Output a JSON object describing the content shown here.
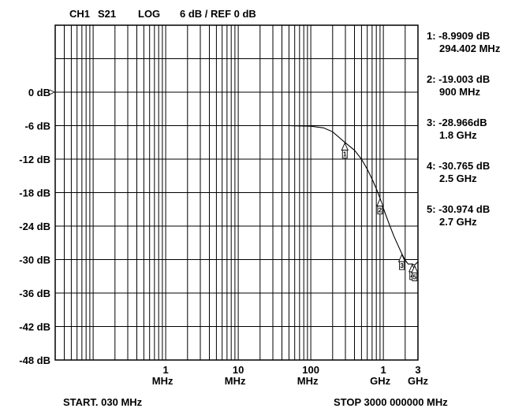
{
  "header": {
    "channel": "CH1",
    "parameter": "S21",
    "format": "LOG",
    "scale": "6 dB / REF 0 dB"
  },
  "footer": {
    "start": "START. 030 MHz",
    "stop": "STOP  3000 000000 MHz"
  },
  "markers": [
    {
      "num": 1,
      "value": "1: -8.9909 dB",
      "freq": "294.402 MHz"
    },
    {
      "num": 2,
      "value": "2: -19.003 dB",
      "freq": "900 MHz"
    },
    {
      "num": 3,
      "value": "3: -28.966dB",
      "freq": "1.8 GHz"
    },
    {
      "num": 4,
      "value": "4: -30.765 dB",
      "freq": "2.5 GHz"
    },
    {
      "num": 5,
      "value": "5: -30.974 dB",
      "freq": "2.7 GHz"
    }
  ],
  "chart_data": {
    "type": "line",
    "title": "CH1 S21  LOG   6 dB / REF 0 dB",
    "x_scale": "log",
    "x_unit": "MHz",
    "xlim": [
      0.03,
      3000
    ],
    "ylim": [
      -48,
      12
    ],
    "y_ticks": [
      {
        "value": 0,
        "label": "0 dB"
      },
      {
        "value": -6,
        "label": "-6 dB"
      },
      {
        "value": -12,
        "label": "-12 dB"
      },
      {
        "value": -18,
        "label": "-18 dB"
      },
      {
        "value": -24,
        "label": "-24 dB"
      },
      {
        "value": -30,
        "label": "-30 dB"
      },
      {
        "value": -36,
        "label": "-36 dB"
      },
      {
        "value": -42,
        "label": "-42 dB"
      },
      {
        "value": -48,
        "label": "-48 dB"
      }
    ],
    "x_ticks": [
      {
        "value": 1,
        "num": "1",
        "unit": "MHz"
      },
      {
        "value": 10,
        "num": "10",
        "unit": "MHz"
      },
      {
        "value": 100,
        "num": "100",
        "unit": "MHz"
      },
      {
        "value": 1000,
        "num": "1",
        "unit": "GHz"
      },
      {
        "value": 3000,
        "num": "3",
        "unit": "GHz"
      }
    ],
    "series": [
      {
        "x": [
          0.03,
          0.1,
          1,
          10,
          50,
          100,
          150,
          200,
          294.402,
          400,
          500,
          600,
          700,
          800,
          900,
          1000,
          1200,
          1400,
          1600,
          1800,
          2000,
          2200,
          2500,
          2700,
          3000
        ],
        "y": [
          -6.0,
          -6.0,
          -6.0,
          -6.0,
          -6.0,
          -6.1,
          -6.4,
          -7.1,
          -8.99,
          -10.4,
          -12.0,
          -13.8,
          -15.6,
          -17.3,
          -19.0,
          -20.8,
          -23.6,
          -25.8,
          -27.5,
          -28.97,
          -30.1,
          -30.8,
          -30.77,
          -30.97,
          -30.4
        ]
      }
    ],
    "markers": [
      {
        "num": 1,
        "x": 294.402,
        "y": -8.9909
      },
      {
        "num": 2,
        "x": 900,
        "y": -19.003
      },
      {
        "num": 3,
        "x": 1800,
        "y": -28.966
      },
      {
        "num": 4,
        "x": 2500,
        "y": -30.765
      },
      {
        "num": 5,
        "x": 2700,
        "y": -30.974
      }
    ],
    "grid": true
  }
}
